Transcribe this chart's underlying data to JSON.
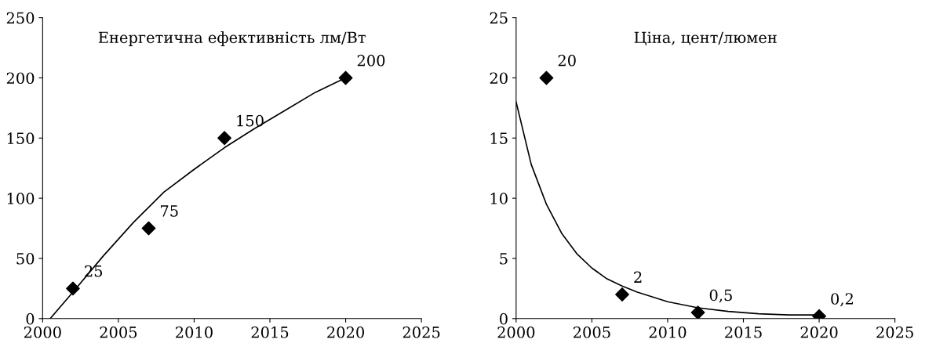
{
  "chart_data": [
    {
      "type": "scatter",
      "title": "Енергетична ефективність лм/Вт",
      "xlim": [
        2000,
        2025
      ],
      "xticks": [
        2000,
        2005,
        2010,
        2015,
        2020,
        2025
      ],
      "ylim": [
        0,
        250
      ],
      "yticks": [
        0,
        50,
        100,
        150,
        200,
        250
      ],
      "marker": "diamond",
      "series": [
        {
          "color": "#000000",
          "x": [
            2002,
            2007,
            2012,
            2020
          ],
          "values": [
            25,
            75,
            150,
            200
          ],
          "value_labels": [
            "25",
            "75",
            "150",
            "200"
          ]
        },
        {
          "type": "line",
          "color": "#000000",
          "marker": "none",
          "x": [
            2000.5,
            2002,
            2004,
            2006,
            2008,
            2010,
            2012,
            2014,
            2016,
            2018,
            2020
          ],
          "values": [
            0,
            22,
            52,
            80,
            105,
            124,
            142,
            158,
            173,
            188,
            200
          ]
        }
      ]
    },
    {
      "type": "scatter",
      "title": "Ціна, цент/люмен",
      "xlim": [
        2000,
        2025
      ],
      "xticks": [
        2000,
        2005,
        2010,
        2015,
        2020,
        2025
      ],
      "ylim": [
        0,
        25
      ],
      "yticks": [
        0,
        5,
        10,
        15,
        20,
        25
      ],
      "marker": "diamond",
      "series": [
        {
          "color": "#000000",
          "x": [
            2002,
            2007,
            2012,
            2020
          ],
          "values": [
            20,
            2,
            0.5,
            0.2
          ],
          "value_labels": [
            "20",
            "2",
            "0,5",
            "0,2"
          ]
        },
        {
          "type": "line",
          "color": "#000000",
          "marker": "none",
          "x": [
            2000,
            2001,
            2002,
            2003,
            2004,
            2005,
            2006,
            2007,
            2008,
            2010,
            2012,
            2014,
            2016,
            2018,
            2020
          ],
          "values": [
            18,
            12.8,
            9.5,
            7.1,
            5.4,
            4.2,
            3.3,
            2.7,
            2.2,
            1.4,
            0.9,
            0.6,
            0.4,
            0.3,
            0.3
          ]
        }
      ]
    }
  ]
}
